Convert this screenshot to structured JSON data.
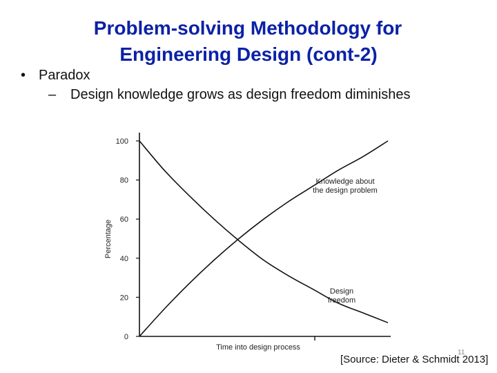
{
  "slide": {
    "title_line1": "Problem-solving Methodology for",
    "title_line2": "Engineering Design (cont-2)",
    "bullet": "Paradox",
    "subbullet": "Design knowledge grows as design freedom diminishes",
    "source": "[Source: Dieter & Schmidt 2013]",
    "page_number": "11",
    "title_color": "#0b21a6"
  },
  "chart_data": {
    "type": "line",
    "xlabel": "Time into design process",
    "ylabel": "Percentage",
    "ylim": [
      0,
      100
    ],
    "xlim": [
      0,
      1
    ],
    "yticks": [
      "0",
      "20",
      "40",
      "60",
      "80",
      "100"
    ],
    "grid": false,
    "series": [
      {
        "name": "Knowledge about the design problem",
        "label_lines": [
          "Knowledge about",
          "the design problem"
        ],
        "x": [
          0,
          0.1,
          0.2,
          0.3,
          0.4,
          0.5,
          0.6,
          0.7,
          0.8,
          0.9,
          1.0
        ],
        "y": [
          0,
          14,
          27,
          39,
          50,
          60,
          69,
          77,
          85,
          92,
          100
        ]
      },
      {
        "name": "Design freedom",
        "label_lines": [
          "Design",
          "freedom"
        ],
        "x": [
          0,
          0.1,
          0.2,
          0.3,
          0.4,
          0.5,
          0.6,
          0.7,
          0.8,
          0.9,
          1.0
        ],
        "y": [
          100,
          85,
          72,
          60,
          49,
          39,
          31,
          24,
          17,
          12,
          7
        ]
      }
    ]
  }
}
